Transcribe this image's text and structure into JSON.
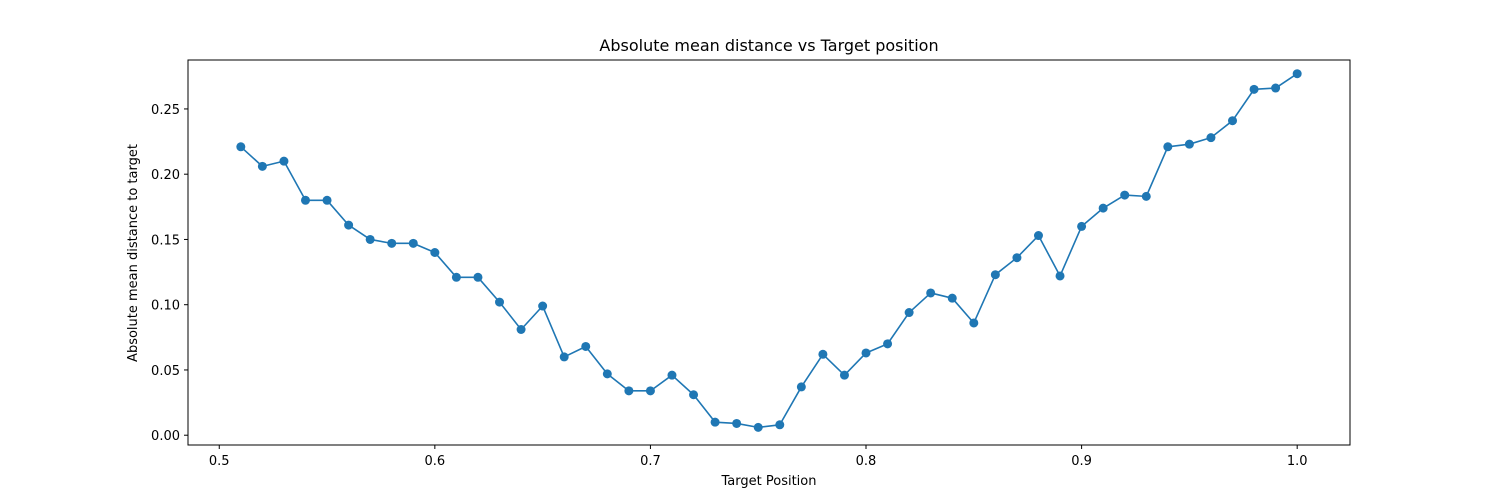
{
  "chart_data": {
    "type": "line",
    "title": "Absolute mean distance vs Target position",
    "xlabel": "Target Position",
    "ylabel": "Absolute mean distance to target",
    "xlim": [
      0.4855,
      1.0245
    ],
    "ylim": [
      -0.0075,
      0.2875
    ],
    "xticks": [
      0.5,
      0.6,
      0.7,
      0.8,
      0.9,
      1.0
    ],
    "xtick_labels": [
      "0.5",
      "0.6",
      "0.7",
      "0.8",
      "0.9",
      "1.0"
    ],
    "yticks": [
      0.0,
      0.05,
      0.1,
      0.15,
      0.2,
      0.25
    ],
    "ytick_labels": [
      "0.00",
      "0.05",
      "0.10",
      "0.15",
      "0.20",
      "0.25"
    ],
    "grid": false,
    "series": [
      {
        "color": "#1f77b4",
        "marker": "circle",
        "x": [
          0.51,
          0.52,
          0.53,
          0.54,
          0.55,
          0.56,
          0.57,
          0.58,
          0.59,
          0.6,
          0.61,
          0.62,
          0.63,
          0.64,
          0.65,
          0.66,
          0.67,
          0.68,
          0.69,
          0.7,
          0.71,
          0.72,
          0.73,
          0.74,
          0.75,
          0.76,
          0.77,
          0.78,
          0.79,
          0.8,
          0.81,
          0.82,
          0.83,
          0.84,
          0.85,
          0.86,
          0.87,
          0.88,
          0.89,
          0.9,
          0.91,
          0.92,
          0.93,
          0.94,
          0.95,
          0.96,
          0.97,
          0.98,
          0.99,
          1.0
        ],
        "y": [
          0.221,
          0.206,
          0.21,
          0.18,
          0.18,
          0.161,
          0.15,
          0.147,
          0.147,
          0.14,
          0.121,
          0.121,
          0.102,
          0.081,
          0.099,
          0.06,
          0.068,
          0.047,
          0.034,
          0.034,
          0.046,
          0.031,
          0.01,
          0.009,
          0.006,
          0.008,
          0.037,
          0.062,
          0.046,
          0.063,
          0.07,
          0.094,
          0.109,
          0.105,
          0.086,
          0.123,
          0.136,
          0.153,
          0.122,
          0.16,
          0.174,
          0.184,
          0.183,
          0.221,
          0.223,
          0.228,
          0.241,
          0.265,
          0.266,
          0.277
        ]
      }
    ]
  }
}
